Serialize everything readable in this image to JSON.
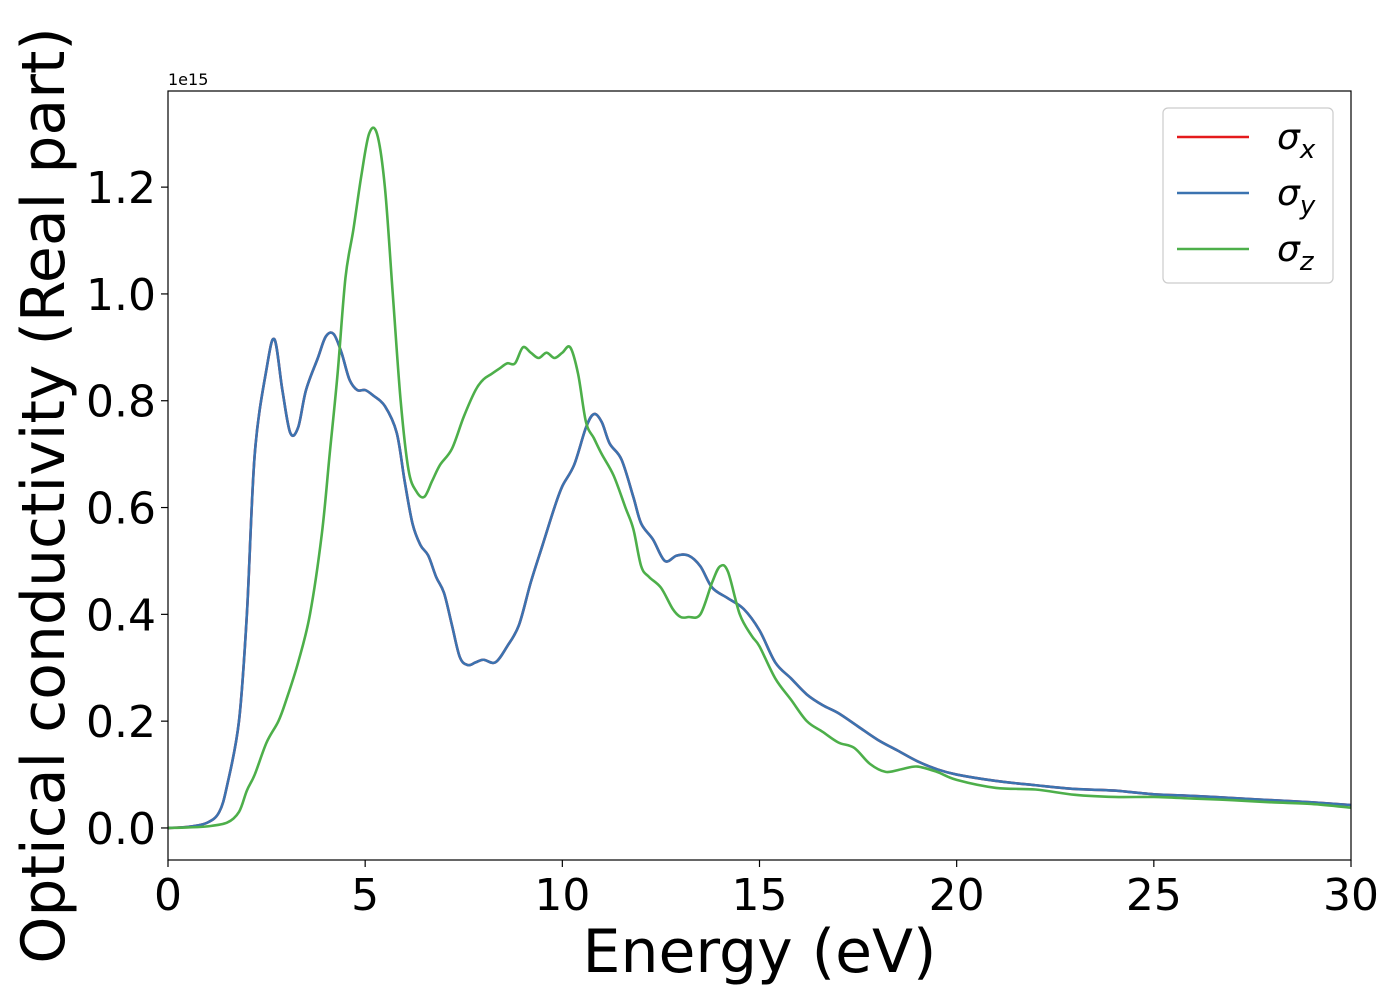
{
  "chart_data": {
    "type": "line",
    "xlabel": "Energy (eV)",
    "ylabel": "Optical conductivity (Real part)",
    "offset_text": "1e15",
    "xlim": [
      0,
      30
    ],
    "ylim": [
      -0.06,
      1.38
    ],
    "x_ticks": [
      0,
      5,
      10,
      15,
      20,
      25,
      30
    ],
    "x_tick_labels": [
      "0",
      "5",
      "10",
      "15",
      "20",
      "25",
      "30"
    ],
    "y_ticks": [
      0.0,
      0.2,
      0.4,
      0.6,
      0.8,
      1.0,
      1.2
    ],
    "y_tick_labels": [
      "0.0",
      "0.2",
      "0.4",
      "0.6",
      "0.8",
      "1.0",
      "1.2"
    ],
    "grid": false,
    "legend_position": "top-right",
    "series": [
      {
        "name": "σ_x",
        "legend_base": "σ",
        "legend_sub": "x",
        "color": "#e41a1c",
        "x": [
          0,
          0.5,
          1.0,
          1.3,
          1.5,
          1.8,
          2.0,
          2.2,
          2.5,
          2.7,
          2.9,
          3.1,
          3.3,
          3.5,
          3.8,
          4.0,
          4.2,
          4.4,
          4.6,
          4.8,
          5.0,
          5.2,
          5.5,
          5.8,
          6.0,
          6.2,
          6.4,
          6.6,
          6.8,
          7.0,
          7.2,
          7.4,
          7.6,
          7.8,
          8.0,
          8.3,
          8.6,
          8.9,
          9.2,
          9.5,
          9.8,
          10.0,
          10.3,
          10.6,
          10.8,
          11.0,
          11.2,
          11.5,
          11.8,
          12.0,
          12.3,
          12.6,
          12.9,
          13.2,
          13.5,
          13.8,
          14.2,
          14.6,
          15.0,
          15.4,
          15.8,
          16.2,
          16.6,
          17.0,
          17.5,
          18.0,
          18.5,
          19.0,
          19.5,
          20.0,
          21.0,
          22.0,
          23.0,
          24.0,
          25.0,
          26.0,
          27.0,
          28.0,
          29.0,
          30.0
        ],
        "y": [
          0.0,
          0.002,
          0.01,
          0.03,
          0.08,
          0.2,
          0.4,
          0.7,
          0.86,
          0.915,
          0.82,
          0.74,
          0.75,
          0.82,
          0.88,
          0.92,
          0.925,
          0.89,
          0.84,
          0.82,
          0.82,
          0.81,
          0.79,
          0.74,
          0.65,
          0.57,
          0.53,
          0.51,
          0.47,
          0.44,
          0.38,
          0.32,
          0.305,
          0.31,
          0.315,
          0.31,
          0.34,
          0.38,
          0.46,
          0.53,
          0.6,
          0.64,
          0.68,
          0.75,
          0.775,
          0.76,
          0.72,
          0.69,
          0.62,
          0.57,
          0.54,
          0.5,
          0.51,
          0.51,
          0.49,
          0.45,
          0.43,
          0.41,
          0.37,
          0.31,
          0.28,
          0.25,
          0.23,
          0.215,
          0.19,
          0.165,
          0.145,
          0.125,
          0.11,
          0.1,
          0.088,
          0.08,
          0.073,
          0.07,
          0.063,
          0.06,
          0.056,
          0.052,
          0.048,
          0.043
        ]
      },
      {
        "name": "σ_y",
        "legend_base": "σ",
        "legend_sub": "y",
        "color": "#3b73b0",
        "x": [
          0,
          0.5,
          1.0,
          1.3,
          1.5,
          1.8,
          2.0,
          2.2,
          2.5,
          2.7,
          2.9,
          3.1,
          3.3,
          3.5,
          3.8,
          4.0,
          4.2,
          4.4,
          4.6,
          4.8,
          5.0,
          5.2,
          5.5,
          5.8,
          6.0,
          6.2,
          6.4,
          6.6,
          6.8,
          7.0,
          7.2,
          7.4,
          7.6,
          7.8,
          8.0,
          8.3,
          8.6,
          8.9,
          9.2,
          9.5,
          9.8,
          10.0,
          10.3,
          10.6,
          10.8,
          11.0,
          11.2,
          11.5,
          11.8,
          12.0,
          12.3,
          12.6,
          12.9,
          13.2,
          13.5,
          13.8,
          14.2,
          14.6,
          15.0,
          15.4,
          15.8,
          16.2,
          16.6,
          17.0,
          17.5,
          18.0,
          18.5,
          19.0,
          19.5,
          20.0,
          21.0,
          22.0,
          23.0,
          24.0,
          25.0,
          26.0,
          27.0,
          28.0,
          29.0,
          30.0
        ],
        "y": [
          0.0,
          0.002,
          0.01,
          0.03,
          0.08,
          0.2,
          0.4,
          0.7,
          0.86,
          0.915,
          0.82,
          0.74,
          0.75,
          0.82,
          0.88,
          0.92,
          0.925,
          0.89,
          0.84,
          0.82,
          0.82,
          0.81,
          0.79,
          0.74,
          0.65,
          0.57,
          0.53,
          0.51,
          0.47,
          0.44,
          0.38,
          0.32,
          0.305,
          0.31,
          0.315,
          0.31,
          0.34,
          0.38,
          0.46,
          0.53,
          0.6,
          0.64,
          0.68,
          0.75,
          0.775,
          0.76,
          0.72,
          0.69,
          0.62,
          0.57,
          0.54,
          0.5,
          0.51,
          0.51,
          0.49,
          0.45,
          0.43,
          0.41,
          0.37,
          0.31,
          0.28,
          0.25,
          0.23,
          0.215,
          0.19,
          0.165,
          0.145,
          0.125,
          0.11,
          0.1,
          0.088,
          0.08,
          0.073,
          0.07,
          0.063,
          0.06,
          0.056,
          0.052,
          0.048,
          0.043
        ]
      },
      {
        "name": "σ_z",
        "legend_base": "σ",
        "legend_sub": "z",
        "color": "#4daf4a",
        "x": [
          0,
          0.5,
          1.0,
          1.5,
          1.8,
          2.0,
          2.2,
          2.5,
          2.8,
          3.0,
          3.3,
          3.6,
          3.9,
          4.1,
          4.3,
          4.5,
          4.7,
          4.9,
          5.1,
          5.3,
          5.5,
          5.7,
          5.9,
          6.1,
          6.3,
          6.5,
          6.7,
          6.9,
          7.2,
          7.5,
          7.8,
          8.0,
          8.2,
          8.4,
          8.6,
          8.8,
          9.0,
          9.2,
          9.4,
          9.6,
          9.8,
          10.0,
          10.2,
          10.4,
          10.6,
          10.8,
          11.0,
          11.3,
          11.6,
          11.8,
          12.0,
          12.2,
          12.5,
          12.8,
          13.0,
          13.2,
          13.5,
          13.8,
          14.0,
          14.2,
          14.5,
          14.8,
          15.0,
          15.4,
          15.8,
          16.2,
          16.6,
          17.0,
          17.4,
          17.8,
          18.2,
          18.6,
          19.0,
          19.5,
          20.0,
          21.0,
          22.0,
          23.0,
          24.0,
          25.0,
          26.0,
          27.0,
          28.0,
          29.0,
          30.0
        ],
        "y": [
          0.0,
          0.001,
          0.003,
          0.01,
          0.03,
          0.07,
          0.1,
          0.16,
          0.2,
          0.24,
          0.31,
          0.4,
          0.55,
          0.7,
          0.85,
          1.03,
          1.12,
          1.22,
          1.3,
          1.3,
          1.2,
          1.0,
          0.8,
          0.67,
          0.63,
          0.62,
          0.65,
          0.68,
          0.71,
          0.77,
          0.82,
          0.84,
          0.85,
          0.86,
          0.87,
          0.87,
          0.9,
          0.89,
          0.88,
          0.89,
          0.88,
          0.89,
          0.9,
          0.85,
          0.76,
          0.73,
          0.7,
          0.66,
          0.6,
          0.56,
          0.49,
          0.47,
          0.45,
          0.41,
          0.395,
          0.395,
          0.4,
          0.46,
          0.49,
          0.48,
          0.4,
          0.36,
          0.34,
          0.28,
          0.24,
          0.2,
          0.18,
          0.16,
          0.15,
          0.12,
          0.105,
          0.11,
          0.115,
          0.105,
          0.09,
          0.075,
          0.072,
          0.062,
          0.058,
          0.058,
          0.055,
          0.052,
          0.048,
          0.045,
          0.038
        ]
      }
    ]
  }
}
